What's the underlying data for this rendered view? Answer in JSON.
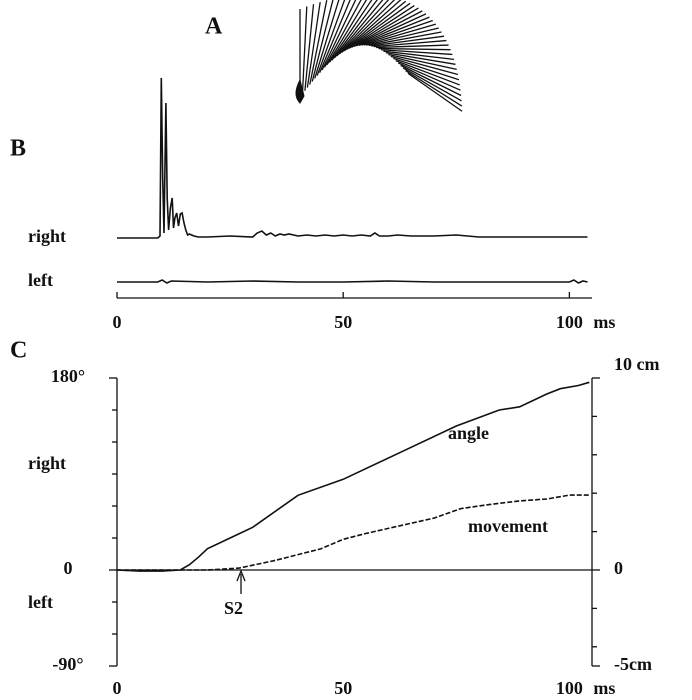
{
  "panel_a": {
    "label": "A"
  },
  "chart_data": [
    {
      "type": "line",
      "label": "B",
      "xlim": [
        0,
        105
      ],
      "ylim": [
        0,
        170
      ],
      "xticks": [
        0,
        50,
        100
      ],
      "x_unit": "ms",
      "color": "#111111",
      "series": [
        {
          "name": "right",
          "x": [
            0,
            9,
            9.5,
            9.8,
            10.1,
            10.4,
            10.8,
            11.1,
            11.4,
            11.8,
            12.2,
            12.5,
            12.8,
            13.2,
            13.6,
            14,
            14.4,
            14.8,
            15.2,
            15.6,
            16,
            17,
            18,
            20,
            25,
            30,
            31,
            32,
            33,
            34,
            35,
            36,
            37,
            38,
            40,
            42,
            44,
            46,
            48,
            50,
            52,
            54,
            56,
            57,
            58,
            60,
            62,
            65,
            70,
            75,
            80,
            85,
            90,
            95,
            100,
            104
          ],
          "values": [
            0,
            0,
            2,
            160,
            60,
            5,
            135,
            40,
            8,
            30,
            40,
            10,
            20,
            25,
            12,
            24,
            25,
            15,
            8,
            3,
            4,
            2,
            1,
            1,
            2,
            1,
            5,
            7,
            3,
            5,
            2,
            4,
            3,
            4,
            2,
            3,
            2,
            3,
            2,
            3,
            2,
            3,
            2,
            5,
            2,
            2,
            3,
            2,
            2,
            3,
            1,
            1,
            1,
            1,
            1,
            1
          ]
        },
        {
          "name": "left",
          "x": [
            0,
            5,
            9,
            10,
            11,
            12,
            20,
            30,
            40,
            50,
            60,
            70,
            80,
            90,
            100,
            101,
            102,
            103,
            104
          ],
          "values": [
            0,
            0,
            0,
            2,
            -1,
            1,
            0,
            1,
            0,
            0,
            1,
            0,
            0,
            0,
            0,
            2,
            -1,
            1,
            0
          ]
        }
      ]
    },
    {
      "type": "line",
      "label": "C",
      "xlim": [
        0,
        105
      ],
      "ylim": [
        -90,
        180
      ],
      "y2lim": [
        -5,
        10
      ],
      "xticks": [
        0,
        50,
        100
      ],
      "x_unit": "ms",
      "yticks": [
        {
          "value": 180,
          "label": "180°"
        },
        0,
        {
          "value": -90,
          "label": "-90°"
        }
      ],
      "minor_yticks": [
        150,
        120,
        90,
        60,
        30,
        -30,
        -60
      ],
      "y2ticks": [
        {
          "value": 10,
          "label": "10 cm"
        },
        0,
        {
          "value": -5,
          "label": "-5cm"
        }
      ],
      "minor_y2ticks": [
        8,
        6,
        4,
        2,
        -2,
        -4
      ],
      "annotations": [
        "right",
        "left",
        "S2"
      ],
      "series": [
        {
          "name": "angle",
          "color": "#111111",
          "dashed": false,
          "x": [
            0,
            5,
            10,
            14,
            16,
            18,
            20,
            25,
            30,
            40,
            50,
            62.5,
            75,
            84.5,
            89,
            95,
            98,
            102,
            104.4
          ],
          "values": [
            0,
            -1,
            -1,
            0,
            5,
            12,
            20,
            30,
            40,
            70,
            85,
            110,
            135,
            150,
            153,
            165,
            170,
            173,
            176
          ]
        },
        {
          "name": "movement",
          "color": "#111111",
          "dashed": true,
          "axis": "y2",
          "x": [
            0,
            15,
            20,
            27,
            35,
            40,
            45,
            50,
            55,
            62.5,
            70,
            76,
            82,
            89,
            95,
            100,
            104.4
          ],
          "values": [
            0,
            0,
            0,
            0.1,
            0.5,
            0.8,
            1.1,
            1.6,
            1.9,
            2.3,
            2.7,
            3.2,
            3.4,
            3.6,
            3.7,
            3.9,
            3.9
          ]
        }
      ]
    }
  ]
}
